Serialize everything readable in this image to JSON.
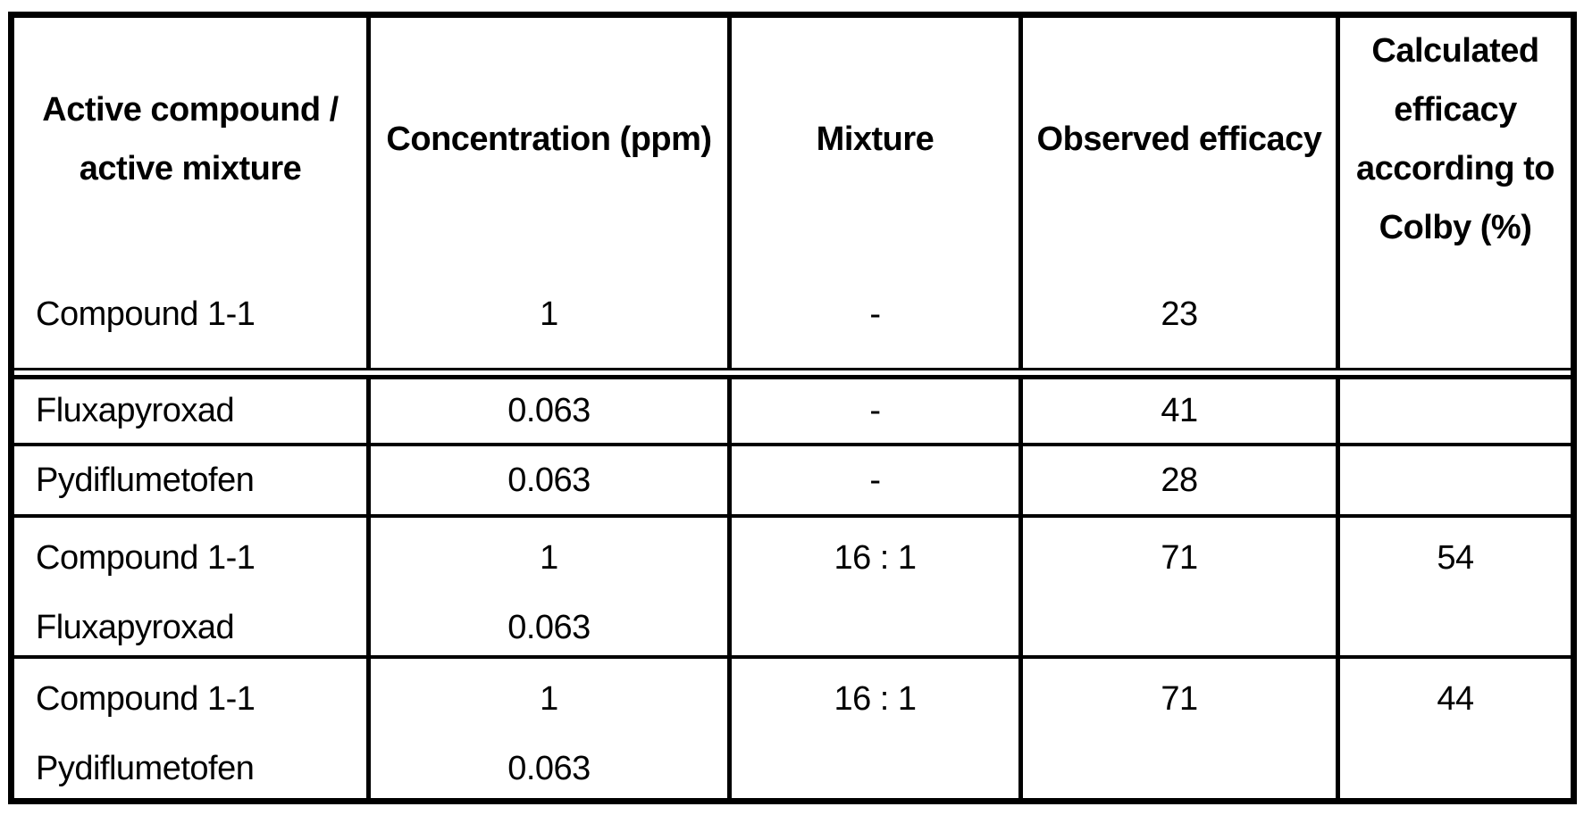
{
  "table": {
    "columns": [
      {
        "header": "Active compound /\nactive mixture"
      },
      {
        "header": "Concentration (ppm)"
      },
      {
        "header": "Mixture"
      },
      {
        "header": "Observed efficacy"
      },
      {
        "header": "Calculated\nefficacy\naccording to\nColby (%)"
      }
    ],
    "header_section_row": {
      "compound": "Compound 1-1",
      "concentration": "1",
      "mixture": "-",
      "observed": "23",
      "colby": ""
    },
    "rows": [
      {
        "compound": "Fluxapyroxad",
        "concentration": "0.063",
        "mixture": "-",
        "observed": "41",
        "colby": ""
      },
      {
        "compound": "Pydiflumetofen",
        "concentration": "0.063",
        "mixture": "-",
        "observed": "28",
        "colby": ""
      },
      {
        "compound": "Compound 1-1\nFluxapyroxad",
        "concentration": "1\n0.063",
        "mixture": "16 : 1",
        "observed": "71",
        "colby": "54"
      },
      {
        "compound": "Compound 1-1\nPydiflumetofen",
        "concentration": "1\n0.063",
        "mixture": "16 : 1",
        "observed": "71",
        "colby": "44"
      }
    ],
    "colors": {
      "border": "#000000",
      "background": "#ffffff",
      "text": "#000000"
    }
  }
}
